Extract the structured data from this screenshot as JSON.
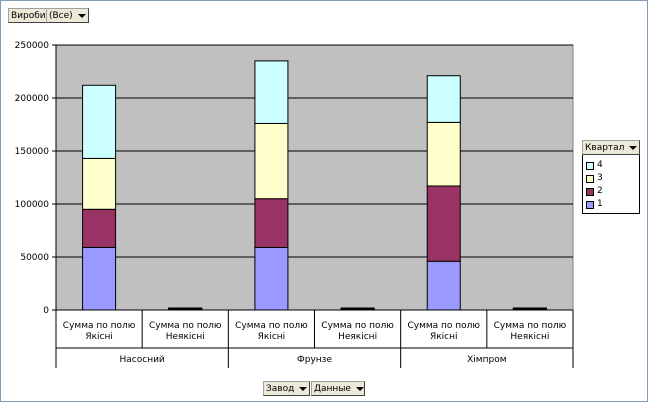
{
  "page_fields": {
    "filter_field": "Вироби",
    "filter_value": "(Все)"
  },
  "bottom_fields": {
    "row_field": "Завод",
    "data_field": "Данные"
  },
  "legend": {
    "title": "Квартал",
    "entries": [
      {
        "label": "4",
        "color": "#ccffff"
      },
      {
        "label": "3",
        "color": "#ffffcc"
      },
      {
        "label": "2",
        "color": "#993366"
      },
      {
        "label": "1",
        "color": "#9999ff"
      }
    ]
  },
  "chart_data": {
    "type": "bar",
    "stacked": true,
    "ylim": [
      0,
      250000
    ],
    "yticks": [
      "0",
      "50000",
      "100000",
      "150000",
      "200000",
      "250000"
    ],
    "grid": true,
    "legend_position": "right",
    "categories": [
      {
        "label": "Сумма по полю Якісні",
        "group": "Насосний"
      },
      {
        "label": "Сумма по полю Неякісні",
        "group": "Насосний"
      },
      {
        "label": "Сумма по полю Якісні",
        "group": "Фрунзе"
      },
      {
        "label": "Сумма по полю Неякісні",
        "group": "Фрунзе"
      },
      {
        "label": "Сумма по полю Якісні",
        "group": "Хімпром"
      },
      {
        "label": "Сумма по полю Неякісні",
        "group": "Хімпром"
      }
    ],
    "groups": [
      "Насосний",
      "Фрунзе",
      "Хімпром"
    ],
    "series": [
      {
        "name": "1",
        "color": "#9999ff",
        "values": [
          59000,
          1000,
          59000,
          1000,
          46000,
          1000
        ]
      },
      {
        "name": "2",
        "color": "#993366",
        "values": [
          36000,
          300,
          46000,
          300,
          71000,
          300
        ]
      },
      {
        "name": "3",
        "color": "#ffffcc",
        "values": [
          48000,
          300,
          71000,
          300,
          60000,
          300
        ]
      },
      {
        "name": "4",
        "color": "#ccffff",
        "values": [
          69000,
          300,
          59000,
          300,
          44000,
          300
        ]
      }
    ]
  }
}
